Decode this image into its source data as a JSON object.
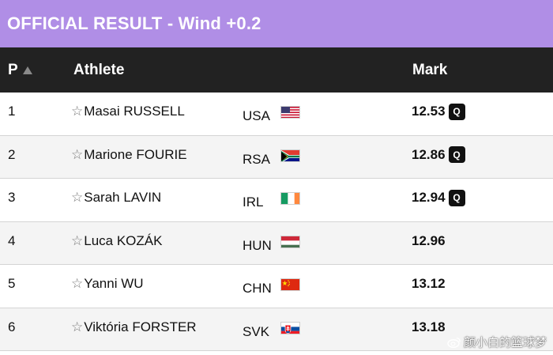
{
  "banner": {
    "title": "OFFICIAL RESULT - Wind +0.2",
    "color": "#b08ee6"
  },
  "table": {
    "headers": {
      "position": "P",
      "athlete": "Athlete",
      "mark": "Mark"
    },
    "rows": [
      {
        "pos": "1",
        "name": "Masai RUSSELL",
        "country": "USA",
        "flag": "usa",
        "mark": "12.53",
        "q": "Q"
      },
      {
        "pos": "2",
        "name": "Marione FOURIE",
        "country": "RSA",
        "flag": "rsa",
        "mark": "12.86",
        "q": "Q"
      },
      {
        "pos": "3",
        "name": "Sarah LAVIN",
        "country": "IRL",
        "flag": "irl",
        "mark": "12.94",
        "q": "Q"
      },
      {
        "pos": "4",
        "name": "Luca KOZÁK",
        "country": "HUN",
        "flag": "hun",
        "mark": "12.96",
        "q": ""
      },
      {
        "pos": "5",
        "name": "Yanni WU",
        "country": "CHN",
        "flag": "chn",
        "mark": "13.12",
        "q": ""
      },
      {
        "pos": "6",
        "name": "Viktória FORSTER",
        "country": "SVK",
        "flag": "svk",
        "mark": "13.18",
        "q": ""
      }
    ]
  },
  "watermark": {
    "text": "颜小白的篮球梦"
  }
}
